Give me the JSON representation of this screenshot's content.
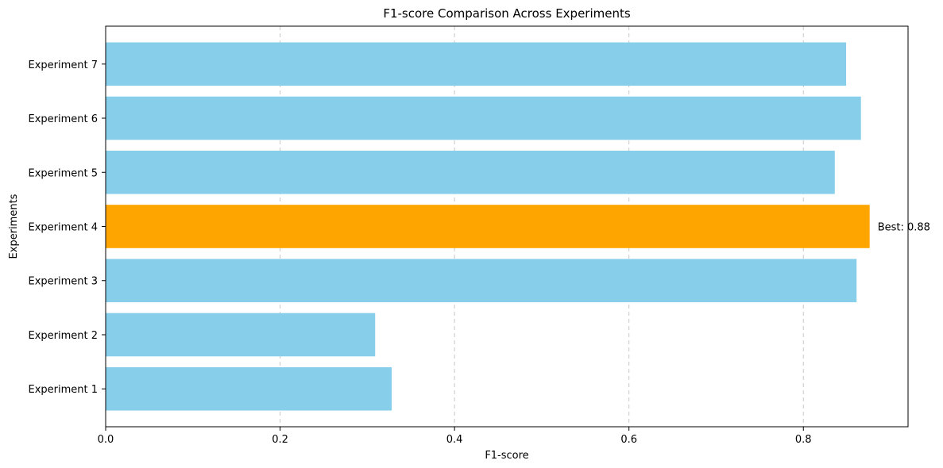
{
  "chart_data": {
    "type": "bar",
    "orientation": "horizontal",
    "title": "F1-score Comparison Across Experiments",
    "xlabel": "F1-score",
    "ylabel": "Experiments",
    "categories": [
      "Experiment 1",
      "Experiment 2",
      "Experiment 3",
      "Experiment 4",
      "Experiment 5",
      "Experiment 6",
      "Experiment 7"
    ],
    "values": [
      0.328,
      0.309,
      0.861,
      0.876,
      0.836,
      0.866,
      0.849
    ],
    "xlim": [
      0,
      0.92
    ],
    "xticks": [
      0.0,
      0.2,
      0.4,
      0.6,
      0.8
    ],
    "xtick_labels": [
      "0.0",
      "0.2",
      "0.4",
      "0.6",
      "0.8"
    ],
    "grid": "x-dashed",
    "bar_color": "#87ceeb",
    "highlight_color": "#ffa500",
    "highlight_index": 3,
    "annotation": "Best: 0.88"
  }
}
